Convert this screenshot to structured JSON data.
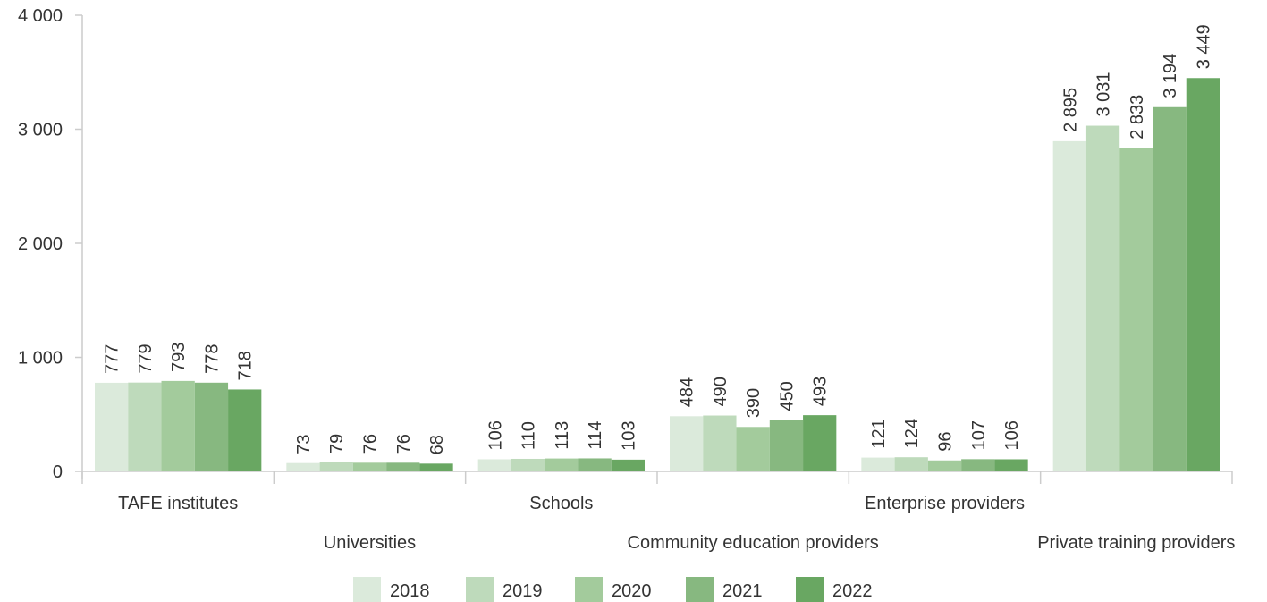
{
  "chart_data": {
    "type": "bar",
    "categories": [
      "TAFE institutes",
      "Universities",
      "Schools",
      "Community education providers",
      "Enterprise providers",
      "Private training providers"
    ],
    "series": [
      {
        "name": "2018",
        "values": [
          777,
          73,
          106,
          484,
          121,
          2895
        ],
        "labels": [
          "777",
          "73",
          "106",
          "484",
          "121",
          "2 895"
        ]
      },
      {
        "name": "2019",
        "values": [
          779,
          79,
          110,
          490,
          124,
          3031
        ],
        "labels": [
          "779",
          "79",
          "110",
          "490",
          "124",
          "3 031"
        ]
      },
      {
        "name": "2020",
        "values": [
          793,
          76,
          113,
          390,
          96,
          2833
        ],
        "labels": [
          "793",
          "76",
          "113",
          "390",
          "96",
          "2 833"
        ]
      },
      {
        "name": "2021",
        "values": [
          778,
          76,
          114,
          450,
          107,
          3194
        ],
        "labels": [
          "778",
          "76",
          "114",
          "450",
          "107",
          "3 194"
        ]
      },
      {
        "name": "2022",
        "values": [
          718,
          68,
          103,
          493,
          106,
          3449
        ],
        "labels": [
          "718",
          "68",
          "103",
          "493",
          "106",
          "3 449"
        ]
      }
    ],
    "colors": [
      "#dbeadb",
      "#bedabb",
      "#a3cb9c",
      "#87b880",
      "#69a762"
    ],
    "ylim": [
      0,
      4000
    ],
    "yticks": [
      0,
      1000,
      2000,
      3000,
      4000
    ],
    "ytick_labels": [
      "0",
      "1 000",
      "2 000",
      "3 000",
      "4 000"
    ],
    "grid": false,
    "legend_position": "bottom"
  }
}
